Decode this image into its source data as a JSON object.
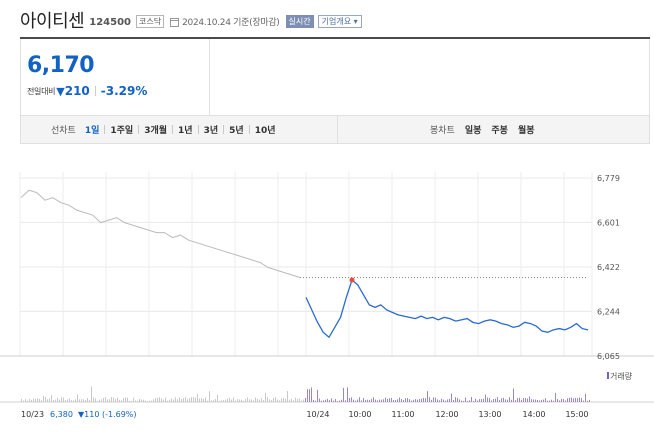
{
  "header": {
    "stock_name": "아이티센",
    "stock_code": "124500",
    "market": "코스닥",
    "date_text": "2024.10.24 기준(장마감)",
    "realtime_label": "실시간",
    "company_info_label": "기업개요 ▾"
  },
  "quote": {
    "price": "6,170",
    "change_label": "전일대비",
    "direction_icon": "▼",
    "change_value": "210",
    "change_percent": "-3.29%",
    "color_down": "#1261c4"
  },
  "tabs": {
    "line_title": "선차트",
    "line_periods": [
      "1일",
      "1주일",
      "3개월",
      "1년",
      "3년",
      "5년",
      "10년"
    ],
    "active_period": "1일",
    "candle_title": "봉차트",
    "candle_periods": [
      "일봉",
      "주봉",
      "월봉"
    ]
  },
  "chart_data": {
    "type": "line",
    "y_ticks": [
      "6,779",
      "6,601",
      "6,422",
      "6,244",
      "6,065"
    ],
    "ylim": [
      6065,
      6779
    ],
    "grid": true,
    "x_tick_labels": [
      "10/24",
      "10:00",
      "11:00",
      "12:00",
      "13:00",
      "14:00",
      "15:00"
    ],
    "volume_label": "거래량",
    "reference_line": 6380,
    "series": [
      {
        "name": "10/23",
        "color": "#bbbbbb",
        "values": [
          6700,
          6730,
          6720,
          6690,
          6700,
          6680,
          6670,
          6650,
          6640,
          6630,
          6600,
          6610,
          6620,
          6600,
          6590,
          6580,
          6570,
          6560,
          6560,
          6540,
          6550,
          6530,
          6520,
          6510,
          6500,
          6490,
          6480,
          6470,
          6460,
          6450,
          6440,
          6420,
          6410,
          6400,
          6390,
          6380
        ]
      },
      {
        "name": "10/24",
        "color": "#2a6ad0",
        "values": [
          6300,
          6250,
          6200,
          6160,
          6140,
          6180,
          6220,
          6300,
          6370,
          6350,
          6310,
          6270,
          6260,
          6270,
          6250,
          6240,
          6230,
          6225,
          6220,
          6215,
          6225,
          6215,
          6220,
          6210,
          6220,
          6215,
          6205,
          6210,
          6215,
          6200,
          6195,
          6205,
          6210,
          6205,
          6195,
          6190,
          6180,
          6185,
          6200,
          6195,
          6185,
          6165,
          6160,
          6170,
          6175,
          6170,
          6180,
          6195,
          6175,
          6170
        ]
      }
    ],
    "prev_close_text": "10/23",
    "prev_price_text": "6,380",
    "prev_change_text": "▼110 (-1.69%)",
    "up_color": "#e74c3c"
  }
}
